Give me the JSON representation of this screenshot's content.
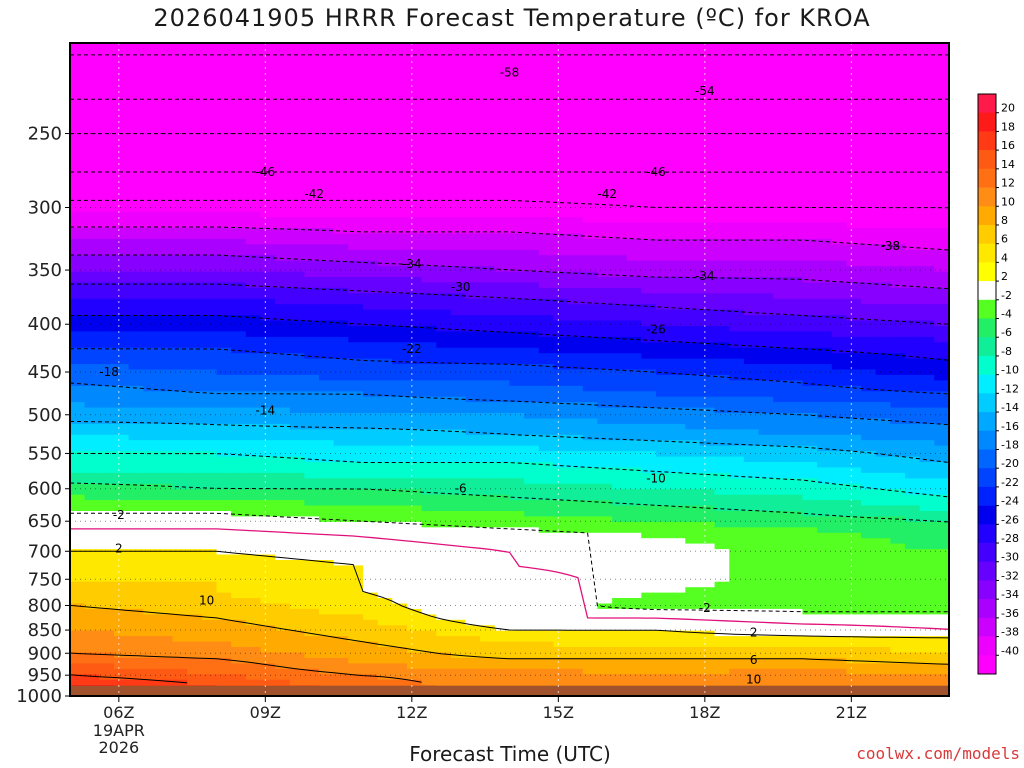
{
  "title": "2026041905 HRRR Forecast Temperature (ºC) for KROA",
  "credit": "coolwx.com/models",
  "chart_data": {
    "type": "heatmap",
    "title": "2026041905 HRRR Forecast Temperature (ºC) for KROA",
    "xlabel": "Forecast Time (UTC)",
    "ylabel": "",
    "x_range_hours": [
      5,
      23
    ],
    "y_range_hpa": [
      1000,
      200
    ],
    "y_scale": "log-pressure",
    "x_ticks": [
      {
        "hour": 6,
        "label": "06Z",
        "date_label": "19APR",
        "year_label": "2026"
      },
      {
        "hour": 9,
        "label": "09Z"
      },
      {
        "hour": 12,
        "label": "12Z"
      },
      {
        "hour": 15,
        "label": "15Z"
      },
      {
        "hour": 18,
        "label": "18Z"
      },
      {
        "hour": 21,
        "label": "21Z"
      }
    ],
    "y_ticks": [
      "250",
      "300",
      "350",
      "400",
      "450",
      "500",
      "550",
      "600",
      "650",
      "700",
      "750",
      "800",
      "850",
      "900",
      "950",
      "1000"
    ],
    "colorbar": {
      "labels": [
        "20",
        "18",
        "16",
        "14",
        "12",
        "10",
        "8",
        "6",
        "4",
        "2",
        "-2",
        "-4",
        "-6",
        "-8",
        "-10",
        "-12",
        "-14",
        "-16",
        "-18",
        "-20",
        "-22",
        "-24",
        "-26",
        "-28",
        "-30",
        "-32",
        "-34",
        "-36",
        "-38",
        "-40"
      ],
      "colors": [
        "#ff1a4a",
        "#ff1a1a",
        "#ff3a14",
        "#ff5a14",
        "#ff7014",
        "#ff8c14",
        "#ffaa00",
        "#ffcc00",
        "#ffe800",
        "#ffff00",
        "#ffffff",
        "#55ff22",
        "#22ee66",
        "#11ee99",
        "#00ffcc",
        "#00eeff",
        "#00ccff",
        "#00a8ff",
        "#0088ff",
        "#0066ff",
        "#0044ff",
        "#0022ff",
        "#0000ee",
        "#2200ff",
        "#4400ff",
        "#6600ff",
        "#8800ff",
        "#aa00ff",
        "#cc00ff",
        "#ee00ff",
        "#ff00ff"
      ]
    },
    "contour_labels": [
      {
        "text": "-58",
        "hour": 14.0,
        "hpa": 215
      },
      {
        "text": "-54",
        "hour": 18.0,
        "hpa": 225
      },
      {
        "text": "-46",
        "hour": 9.0,
        "hpa": 275
      },
      {
        "text": "-46",
        "hour": 17.0,
        "hpa": 275
      },
      {
        "text": "-42",
        "hour": 10.0,
        "hpa": 290
      },
      {
        "text": "-42",
        "hour": 16.0,
        "hpa": 290
      },
      {
        "text": "-38",
        "hour": 21.8,
        "hpa": 330
      },
      {
        "text": "-34",
        "hour": 12.0,
        "hpa": 345
      },
      {
        "text": "-34",
        "hour": 18.0,
        "hpa": 355
      },
      {
        "text": "-30",
        "hour": 13.0,
        "hpa": 365
      },
      {
        "text": "-26",
        "hour": 17.0,
        "hpa": 405
      },
      {
        "text": "-22",
        "hour": 12.0,
        "hpa": 425
      },
      {
        "text": "-18",
        "hour": 5.8,
        "hpa": 450
      },
      {
        "text": "-14",
        "hour": 9.0,
        "hpa": 495
      },
      {
        "text": "-10",
        "hour": 17.0,
        "hpa": 585
      },
      {
        "text": "-6",
        "hour": 13.0,
        "hpa": 600
      },
      {
        "text": "-2",
        "hour": 6.0,
        "hpa": 640
      },
      {
        "text": "-2",
        "hour": 18.0,
        "hpa": 805
      },
      {
        "text": "2",
        "hour": 6.0,
        "hpa": 695
      },
      {
        "text": "2",
        "hour": 19.0,
        "hpa": 855
      },
      {
        "text": "6",
        "hour": 19.0,
        "hpa": 915
      },
      {
        "text": "10",
        "hour": 7.8,
        "hpa": 790
      },
      {
        "text": "10",
        "hour": 19.0,
        "hpa": 960
      }
    ],
    "bands_description_values": {
      "levels_hpa": [
        1000,
        975,
        950,
        925,
        900,
        875,
        850,
        825,
        800,
        775,
        750,
        725,
        700,
        675,
        650,
        625,
        600,
        575,
        550,
        525,
        500,
        475,
        450,
        425,
        400,
        375,
        350,
        325,
        300,
        275,
        250,
        225,
        200
      ],
      "hours": [
        5,
        8,
        11,
        14,
        17,
        20,
        23
      ],
      "temperature_c": [
        [
          null,
          null,
          null,
          null,
          null,
          null,
          null
        ],
        [
          17,
          14,
          11,
          9,
          9,
          10,
          10
        ],
        [
          14,
          12,
          10,
          9,
          8,
          9,
          8
        ],
        [
          12,
          11,
          8,
          7,
          7,
          7,
          6
        ],
        [
          10,
          9,
          7,
          5,
          5,
          5,
          4
        ],
        [
          9,
          8,
          6,
          4,
          3,
          3,
          3
        ],
        [
          8,
          7,
          5,
          2,
          2,
          1,
          0
        ],
        [
          7,
          6,
          4,
          0,
          0,
          -1,
          -1
        ],
        [
          6,
          5,
          3,
          -1,
          -3,
          -3,
          -3
        ],
        [
          5,
          4,
          2,
          0,
          -2,
          -3,
          -3
        ],
        [
          4,
          4,
          2,
          1,
          -1,
          -3,
          -3
        ],
        [
          3,
          3,
          2,
          0,
          -1,
          -3,
          -4
        ],
        [
          2,
          2,
          1,
          0,
          -1,
          -3,
          -4
        ],
        [
          1,
          1,
          0,
          -1,
          -2,
          -3,
          -5
        ],
        [
          -1,
          -1,
          -2,
          -3,
          -4,
          -5,
          -6
        ],
        [
          -3,
          -3,
          -4,
          -5,
          -6,
          -7,
          -9
        ],
        [
          -5,
          -6,
          -6,
          -7,
          -8,
          -9,
          -11
        ],
        [
          -8,
          -8,
          -9,
          -9,
          -10,
          -11,
          -13
        ],
        [
          -10,
          -10,
          -11,
          -11,
          -12,
          -13,
          -15
        ],
        [
          -12,
          -13,
          -13,
          -14,
          -15,
          -16,
          -17
        ],
        [
          -15,
          -15,
          -16,
          -16,
          -17,
          -18,
          -19
        ],
        [
          -17,
          -18,
          -18,
          -19,
          -20,
          -21,
          -22
        ],
        [
          -19,
          -20,
          -21,
          -21,
          -22,
          -23,
          -25
        ],
        [
          -22,
          -22,
          -23,
          -24,
          -25,
          -26,
          -27
        ],
        [
          -25,
          -25,
          -26,
          -27,
          -28,
          -29,
          -30
        ],
        [
          -28,
          -28,
          -29,
          -30,
          -31,
          -32,
          -33
        ],
        [
          -32,
          -32,
          -33,
          -34,
          -35,
          -35,
          -36
        ],
        [
          -36,
          -36,
          -37,
          -37,
          -38,
          -38,
          -39
        ],
        [
          -41,
          -41,
          -41,
          -41,
          -42,
          -42,
          -42
        ],
        [
          -46,
          -46,
          -46,
          -46,
          -46,
          -46,
          -46
        ],
        [
          -50,
          -50,
          -50,
          -50,
          -50,
          -50,
          -50
        ],
        [
          -55,
          -55,
          -55,
          -55,
          -55,
          -55,
          -55
        ],
        [
          -59,
          -59,
          -59,
          -59,
          -59,
          -59,
          -59
        ]
      ]
    }
  }
}
